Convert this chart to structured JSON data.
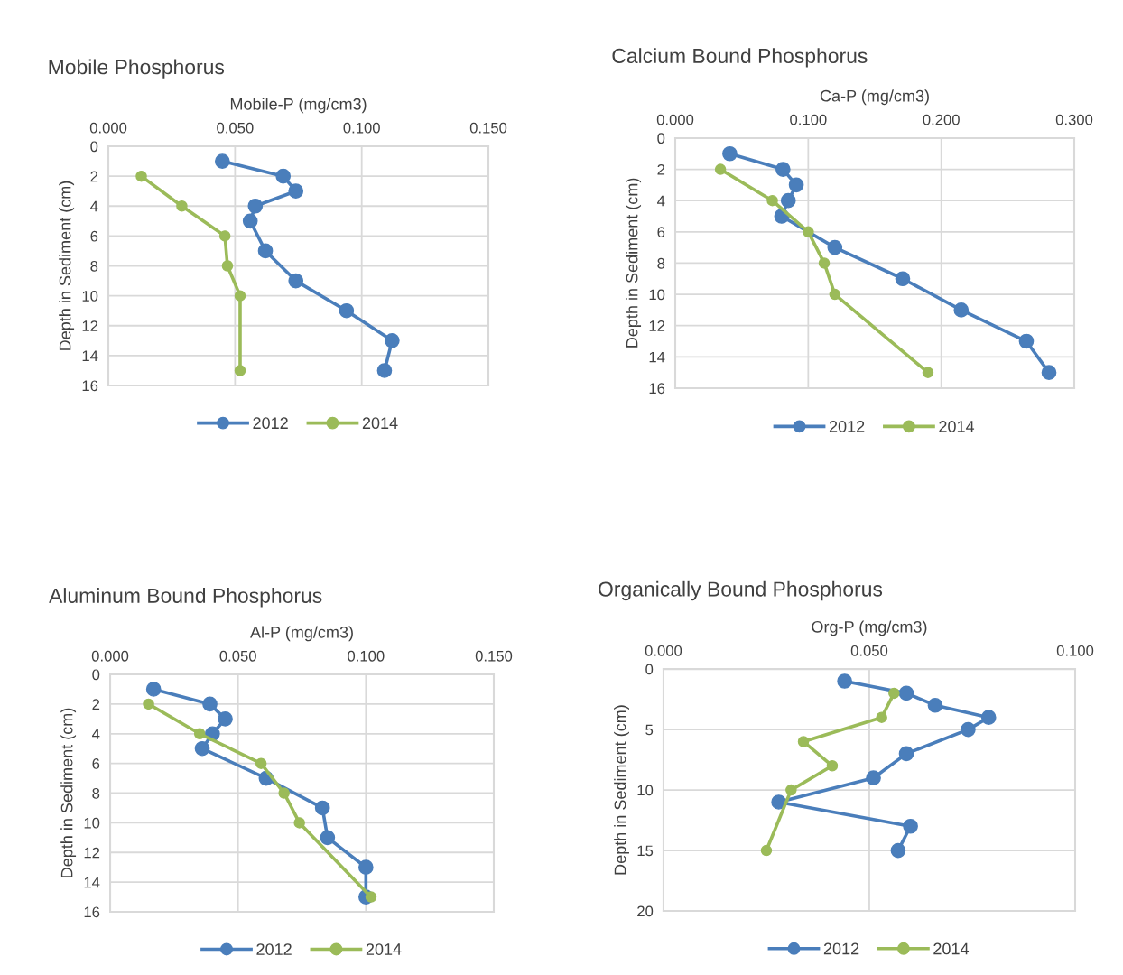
{
  "chart_data": [
    {
      "type": "line",
      "title": "Mobile Phosphorus",
      "xlabel": "Mobile-P (mg/cm3)",
      "ylabel": "Depth in Sediment (cm)",
      "xlim": [
        0,
        0.15
      ],
      "xticks": [
        {
          "value": 0,
          "label": "0.000"
        },
        {
          "value": 0.05,
          "label": "0.050"
        },
        {
          "value": 0.1,
          "label": "0.100"
        },
        {
          "value": 0.15,
          "label": "0.150"
        }
      ],
      "ylim": [
        16,
        0
      ],
      "yticks": [
        0,
        2,
        4,
        6,
        8,
        10,
        12,
        14,
        16
      ],
      "grid": true,
      "legend": "bottom",
      "marker": "circle",
      "line_style": "solid",
      "series": [
        {
          "name": "2012",
          "color": "#4a7ebb",
          "x": [
            0.045,
            0.069,
            0.074,
            0.058,
            0.056,
            0.062,
            0.074,
            0.094,
            0.112,
            0.109
          ],
          "values": [
            1,
            2,
            3,
            4,
            5,
            7,
            9,
            11,
            13,
            15
          ]
        },
        {
          "name": "2014",
          "color": "#9bbb59",
          "x": [
            0.013,
            0.029,
            0.046,
            0.047,
            0.052,
            0.052
          ],
          "values": [
            2,
            4,
            6,
            8,
            10,
            15
          ]
        }
      ]
    },
    {
      "type": "line",
      "title": "Calcium Bound Phosphorus",
      "xlabel": "Ca-P (mg/cm3)",
      "ylabel": "Depth in Sediment (cm)",
      "xlim": [
        0,
        0.3
      ],
      "xticks": [
        {
          "value": 0,
          "label": "0.000"
        },
        {
          "value": 0.1,
          "label": "0.100"
        },
        {
          "value": 0.2,
          "label": "0.200"
        },
        {
          "value": 0.3,
          "label": "0.300"
        }
      ],
      "ylim": [
        16,
        0
      ],
      "yticks": [
        0,
        2,
        4,
        6,
        8,
        10,
        12,
        14,
        16
      ],
      "grid": true,
      "legend": "bottom",
      "marker": "circle",
      "line_style": "solid",
      "series": [
        {
          "name": "2012",
          "color": "#4a7ebb",
          "x": [
            0.041,
            0.081,
            0.091,
            0.085,
            0.08,
            0.12,
            0.171,
            0.215,
            0.264,
            0.281
          ],
          "values": [
            1,
            2,
            3,
            4,
            5,
            7,
            9,
            11,
            13,
            15
          ]
        },
        {
          "name": "2014",
          "color": "#9bbb59",
          "x": [
            0.034,
            0.073,
            0.1,
            0.112,
            0.12,
            0.19
          ],
          "values": [
            2,
            4,
            6,
            8,
            10,
            15
          ]
        }
      ]
    },
    {
      "type": "line",
      "title": "Aluminum Bound Phosphorus",
      "xlabel": "Al-P (mg/cm3)",
      "ylabel": "Depth in Sediment (cm)",
      "xlim": [
        0,
        0.15
      ],
      "xticks": [
        {
          "value": 0,
          "label": "0.000"
        },
        {
          "value": 0.05,
          "label": "0.050"
        },
        {
          "value": 0.1,
          "label": "0.100"
        },
        {
          "value": 0.15,
          "label": "0.150"
        }
      ],
      "ylim": [
        16,
        0
      ],
      "yticks": [
        0,
        2,
        4,
        6,
        8,
        10,
        12,
        14,
        16
      ],
      "grid": true,
      "legend": "bottom",
      "marker": "circle",
      "line_style": "solid",
      "series": [
        {
          "name": "2012",
          "color": "#4a7ebb",
          "x": [
            0.017,
            0.039,
            0.045,
            0.04,
            0.036,
            0.061,
            0.083,
            0.085,
            0.1,
            0.1
          ],
          "values": [
            1,
            2,
            3,
            4,
            5,
            7,
            9,
            11,
            13,
            15
          ]
        },
        {
          "name": "2014",
          "color": "#9bbb59",
          "x": [
            0.015,
            0.035,
            0.059,
            0.068,
            0.074,
            0.102
          ],
          "values": [
            2,
            4,
            6,
            8,
            10,
            15
          ]
        }
      ]
    },
    {
      "type": "line",
      "title": "Organically Bound Phosphorus",
      "xlabel": "Org-P (mg/cm3)",
      "ylabel": "Depth in Sediment (cm)",
      "xlim": [
        0,
        0.1
      ],
      "xticks": [
        {
          "value": 0,
          "label": "0.000"
        },
        {
          "value": 0.05,
          "label": "0.050"
        },
        {
          "value": 0.1,
          "label": "0.100"
        }
      ],
      "ylim": [
        20,
        0
      ],
      "yticks": [
        0,
        5,
        10,
        15,
        20
      ],
      "grid": true,
      "legend": "bottom",
      "marker": "circle",
      "line_style": "solid",
      "series": [
        {
          "name": "2012",
          "color": "#4a7ebb",
          "x": [
            0.044,
            0.059,
            0.066,
            0.079,
            0.074,
            0.059,
            0.051,
            0.028,
            0.06,
            0.057
          ],
          "values": [
            1,
            2,
            3,
            4,
            5,
            7,
            9,
            11,
            13,
            15
          ]
        },
        {
          "name": "2014",
          "color": "#9bbb59",
          "x": [
            0.056,
            0.053,
            0.034,
            0.041,
            0.031,
            0.025
          ],
          "values": [
            2,
            4,
            6,
            8,
            10,
            15
          ]
        }
      ]
    }
  ]
}
